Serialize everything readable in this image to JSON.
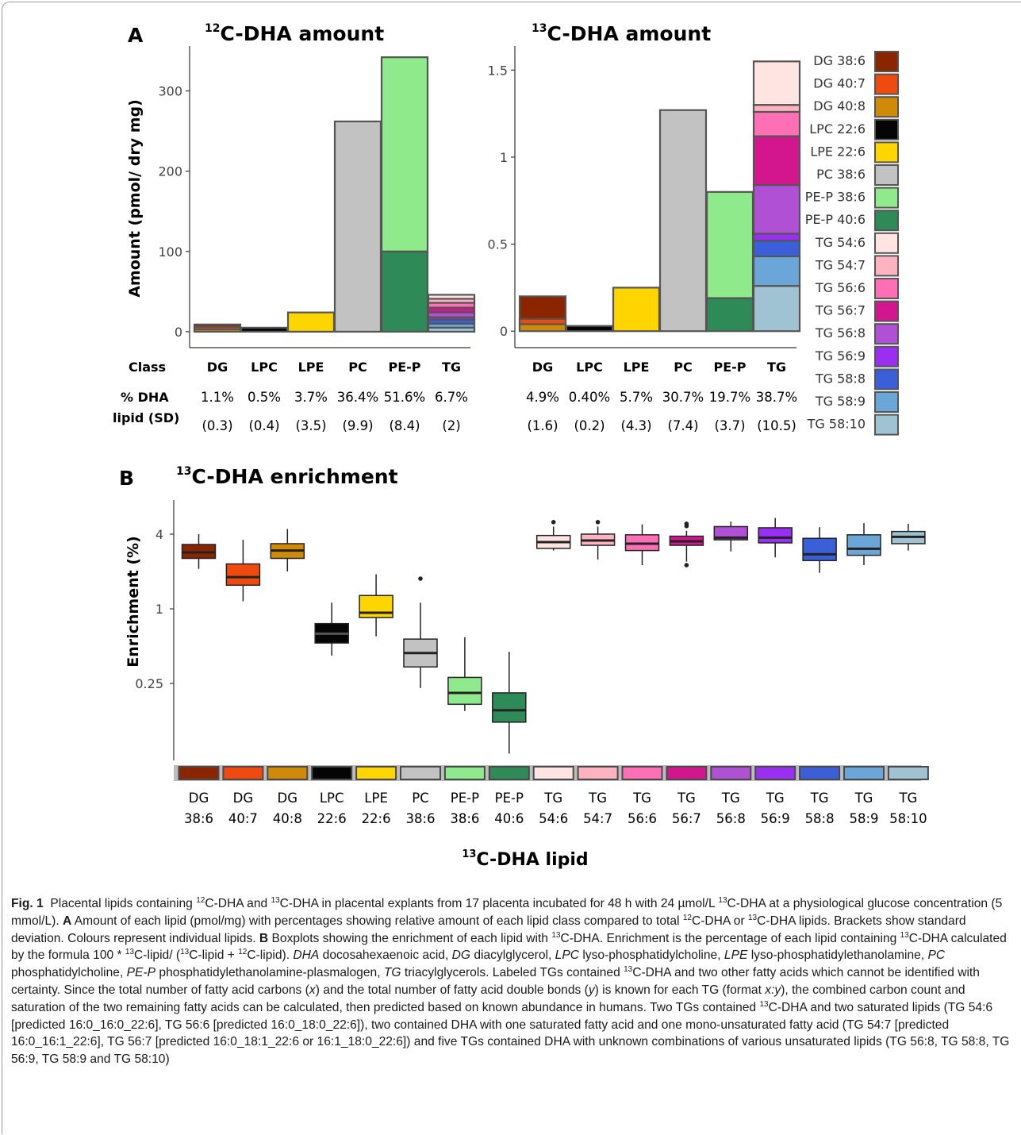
{
  "colors": {
    "DG 38:6": "#8b2500",
    "DG 40:7": "#f04a0f",
    "DG 40:8": "#cf8a08",
    "LPC 22:6": "#050505",
    "LPE 22:6": "#ffd500",
    "PC 38:6": "#c2c2c2",
    "PE-P 38:6": "#8eea8a",
    "PE-P 40:6": "#2e8b57",
    "TG 54:6": "#ffe4e1",
    "TG 54:7": "#ffb3c0",
    "TG 56:6": "#ff6fb5",
    "TG 56:7": "#d4168e",
    "TG 56:8": "#b050d4",
    "TG 56:9": "#9a2ef2",
    "TG 58:8": "#3a5fd8",
    "TG 58:9": "#6aa6d8",
    "TG 58:10": "#9fc3d3"
  },
  "panelA": {
    "letter": "A",
    "classes": [
      "DG",
      "LPC",
      "LPE",
      "PC",
      "PE-P",
      "TG"
    ],
    "row_labels": {
      "class": "Class",
      "pct_line1": "% DHA",
      "pct_line2": "lipid (SD)"
    },
    "left": {
      "title_iso": "12",
      "title_rest": "C-DHA amount",
      "pct": [
        "1.1%",
        "0.5%",
        "3.7%",
        "36.4%",
        "51.6%",
        "6.7%"
      ],
      "sd": [
        "(0.3)",
        "(0.4)",
        "(3.5)",
        "(9.9)",
        "(8.4)",
        "(2)"
      ]
    },
    "right": {
      "title_iso": "13",
      "title_rest": "C-DHA amount",
      "pct": [
        "4.9%",
        "0.40%",
        "5.7%",
        "30.7%",
        "19.7%",
        "38.7%"
      ],
      "sd": [
        "(1.6)",
        "(0.2)",
        "(4.3)",
        "(7.4)",
        "(3.7)",
        "(10.5)"
      ]
    },
    "legend": [
      "DG 38:6",
      "DG 40:7",
      "DG 40:8",
      "LPC 22:6",
      "LPE 22:6",
      "PC 38:6",
      "PE-P 38:6",
      "PE-P 40:6",
      "TG 54:6",
      "TG 54:7",
      "TG 56:6",
      "TG 56:7",
      "TG 56:8",
      "TG 56:9",
      "TG 58:8",
      "TG 58:9",
      "TG 58:10"
    ]
  },
  "panelB": {
    "letter": "B",
    "title_iso": "13",
    "title_rest": "C-DHA enrichment",
    "xlabel_iso": "13",
    "xlabel_rest": "C-DHA lipid",
    "tick_line1": [
      "DG",
      "DG",
      "DG",
      "LPC",
      "LPE",
      "PC",
      "PE-P",
      "PE-P",
      "TG",
      "TG",
      "TG",
      "TG",
      "TG",
      "TG",
      "TG",
      "TG",
      "TG"
    ],
    "tick_line2": [
      "38:6",
      "40:7",
      "40:8",
      "22:6",
      "22:6",
      "38:6",
      "38:6",
      "40:6",
      "54:6",
      "54:7",
      "56:6",
      "56:7",
      "56:8",
      "56:9",
      "58:8",
      "58:9",
      "58:10"
    ]
  },
  "chart_data": [
    {
      "type": "bar",
      "stacked": true,
      "title": "12C-DHA amount",
      "ylabel": "Amount (pmol/ dry mg)",
      "xlabel": "Class",
      "categories": [
        "DG",
        "LPC",
        "LPE",
        "PC",
        "PE-P",
        "TG"
      ],
      "ylim": [
        -8,
        352
      ],
      "yticks": [
        0,
        100,
        200,
        300
      ],
      "stacks": [
        [
          {
            "lipid": "DG 40:8",
            "value": 3
          },
          {
            "lipid": "DG 40:7",
            "value": 3
          },
          {
            "lipid": "DG 38:6",
            "value": 3
          }
        ],
        [
          {
            "lipid": "LPC 22:6",
            "value": 5
          }
        ],
        [
          {
            "lipid": "LPE 22:6",
            "value": 24
          }
        ],
        [
          {
            "lipid": "PC 38:6",
            "value": 262
          }
        ],
        [
          {
            "lipid": "PE-P 40:6",
            "value": 100
          },
          {
            "lipid": "PE-P 38:6",
            "value": 242
          }
        ],
        [
          {
            "lipid": "TG 58:10",
            "value": 5
          },
          {
            "lipid": "TG 58:9",
            "value": 5
          },
          {
            "lipid": "TG 58:8",
            "value": 5
          },
          {
            "lipid": "TG 56:9",
            "value": 3
          },
          {
            "lipid": "TG 56:8",
            "value": 6
          },
          {
            "lipid": "TG 56:7",
            "value": 6
          },
          {
            "lipid": "TG 56:6",
            "value": 6
          },
          {
            "lipid": "TG 54:7",
            "value": 5
          },
          {
            "lipid": "TG 54:6",
            "value": 5
          }
        ]
      ]
    },
    {
      "type": "bar",
      "stacked": true,
      "title": "13C-DHA amount",
      "xlabel": "Class",
      "categories": [
        "DG",
        "LPC",
        "LPE",
        "PC",
        "PE-P",
        "TG"
      ],
      "ylim": [
        -0.04,
        1.62
      ],
      "yticks": [
        0,
        0.5,
        1,
        1.5
      ],
      "ytick_labels": [
        "0",
        "0.5",
        "1",
        "1.5"
      ],
      "stacks": [
        [
          {
            "lipid": "DG 40:8",
            "value": 0.04
          },
          {
            "lipid": "DG 40:7",
            "value": 0.03
          },
          {
            "lipid": "DG 38:6",
            "value": 0.13
          }
        ],
        [
          {
            "lipid": "LPC 22:6",
            "value": 0.03
          }
        ],
        [
          {
            "lipid": "LPE 22:6",
            "value": 0.25
          }
        ],
        [
          {
            "lipid": "PC 38:6",
            "value": 1.27
          }
        ],
        [
          {
            "lipid": "PE-P 40:6",
            "value": 0.19
          },
          {
            "lipid": "PE-P 38:6",
            "value": 0.61
          }
        ],
        [
          {
            "lipid": "TG 58:10",
            "value": 0.26
          },
          {
            "lipid": "TG 58:9",
            "value": 0.17
          },
          {
            "lipid": "TG 58:8",
            "value": 0.09
          },
          {
            "lipid": "TG 56:9",
            "value": 0.04
          },
          {
            "lipid": "TG 56:8",
            "value": 0.28
          },
          {
            "lipid": "TG 56:7",
            "value": 0.28
          },
          {
            "lipid": "TG 56:6",
            "value": 0.14
          },
          {
            "lipid": "TG 54:7",
            "value": 0.04
          },
          {
            "lipid": "TG 54:6",
            "value": 0.25
          }
        ]
      ]
    },
    {
      "type": "boxplot",
      "title": "13C-DHA enrichment",
      "ylabel": "Enrichment (%)",
      "xlabel": "13C-DHA lipid",
      "y_scale": "log2",
      "ylim": [
        0.06,
        6.5
      ],
      "yticks": [
        0.25,
        1,
        4
      ],
      "ytick_labels": [
        "0.25",
        "1",
        "4"
      ],
      "categories": [
        "DG 38:6",
        "DG 40:7",
        "DG 40:8",
        "LPC 22:6",
        "LPE 22:6",
        "PC 38:6",
        "PE-P 38:6",
        "PE-P 40:6",
        "TG 54:6",
        "TG 54:7",
        "TG 56:6",
        "TG 56:7",
        "TG 56:8",
        "TG 56:9",
        "TG 58:8",
        "TG 58:9",
        "TG 58:10"
      ],
      "boxes": [
        {
          "min": 2.1,
          "q1": 2.55,
          "median": 2.85,
          "q3": 3.3,
          "max": 4.0,
          "outliers": []
        },
        {
          "min": 1.15,
          "q1": 1.55,
          "median": 1.8,
          "q3": 2.3,
          "max": 3.6,
          "outliers": []
        },
        {
          "min": 2.0,
          "q1": 2.55,
          "median": 2.95,
          "q3": 3.35,
          "max": 4.4,
          "outliers": []
        },
        {
          "min": 0.42,
          "q1": 0.53,
          "median": 0.63,
          "q3": 0.76,
          "max": 1.12,
          "outliers": []
        },
        {
          "min": 0.6,
          "q1": 0.85,
          "median": 0.93,
          "q3": 1.28,
          "max": 1.9,
          "outliers": []
        },
        {
          "min": 0.23,
          "q1": 0.34,
          "median": 0.44,
          "q3": 0.57,
          "max": 1.12,
          "outliers": [
            1.75
          ]
        },
        {
          "min": 0.15,
          "q1": 0.17,
          "median": 0.21,
          "q3": 0.28,
          "max": 0.59,
          "outliers": []
        },
        {
          "min": 0.068,
          "q1": 0.122,
          "median": 0.152,
          "q3": 0.21,
          "max": 0.45,
          "outliers": []
        },
        {
          "min": 2.95,
          "q1": 3.07,
          "median": 3.45,
          "q3": 3.9,
          "max": 4.6,
          "outliers": [
            5.0
          ]
        },
        {
          "min": 2.5,
          "q1": 3.25,
          "median": 3.55,
          "q3": 4.0,
          "max": 4.6,
          "outliers": [
            5.0
          ]
        },
        {
          "min": 2.25,
          "q1": 2.95,
          "median": 3.35,
          "q3": 3.95,
          "max": 4.8,
          "outliers": []
        },
        {
          "min": 2.4,
          "q1": 3.25,
          "median": 3.5,
          "q3": 3.85,
          "max": 4.25,
          "outliers": [
            2.25,
            4.65,
            4.85
          ]
        },
        {
          "min": 2.9,
          "q1": 3.6,
          "median": 3.75,
          "q3": 4.6,
          "max": 5.05,
          "outliers": []
        },
        {
          "min": 2.6,
          "q1": 3.4,
          "median": 3.75,
          "q3": 4.5,
          "max": 5.4,
          "outliers": []
        },
        {
          "min": 1.95,
          "q1": 2.45,
          "median": 2.75,
          "q3": 3.7,
          "max": 4.55,
          "outliers": []
        },
        {
          "min": 2.25,
          "q1": 2.7,
          "median": 3.05,
          "q3": 3.95,
          "max": 4.9,
          "outliers": []
        },
        {
          "min": 2.95,
          "q1": 3.35,
          "median": 3.8,
          "q3": 4.2,
          "max": 4.85,
          "outliers": []
        }
      ]
    }
  ]
}
